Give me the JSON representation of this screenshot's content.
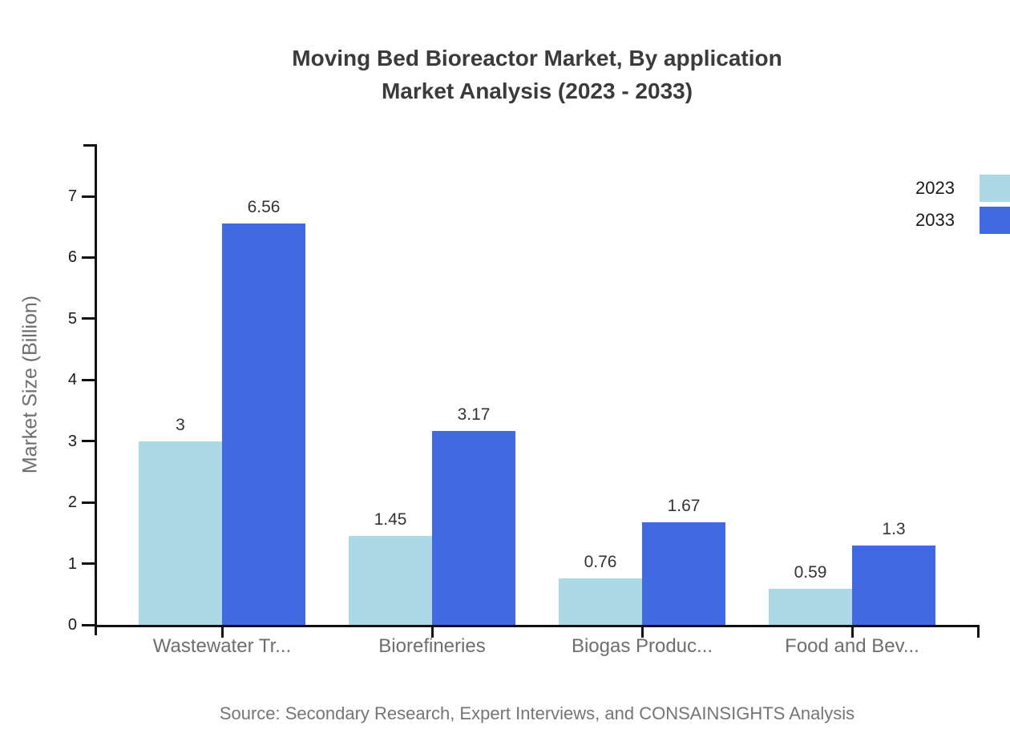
{
  "title": {
    "line1": "Moving Bed Bioreactor Market, By application",
    "line2": "Market Analysis (2023 - 2033)"
  },
  "source": "Source: Secondary Research, Expert Interviews, and CONSAINSIGHTS Analysis",
  "chart_data": {
    "type": "bar",
    "title": "Moving Bed Bioreactor Market, By application Market Analysis (2023 - 2033)",
    "xlabel": "",
    "ylabel": "Market Size (Billion)",
    "categories": [
      "Wastewater Tr...",
      "Biorefineries",
      "Biogas Produc...",
      "Food and Bev..."
    ],
    "series": [
      {
        "name": "2023",
        "color": "#ADD8E6",
        "values": [
          3,
          1.45,
          0.76,
          0.59
        ]
      },
      {
        "name": "2033",
        "color": "#4169E1",
        "values": [
          6.56,
          3.17,
          1.67,
          1.3
        ]
      }
    ],
    "yticks": [
      0,
      1,
      2,
      3,
      4,
      5,
      6,
      7
    ],
    "ylim": [
      0,
      7.85
    ],
    "grid": false,
    "legend_position": "top-right",
    "bar_value_labels_shown": true
  },
  "colors": {
    "series_2023": "#ADD8E6",
    "series_2033": "#4169E1",
    "axis": "#111111",
    "title_text": "#3b3b3b",
    "muted_text": "#6e6e6e",
    "source_text": "#757575"
  }
}
